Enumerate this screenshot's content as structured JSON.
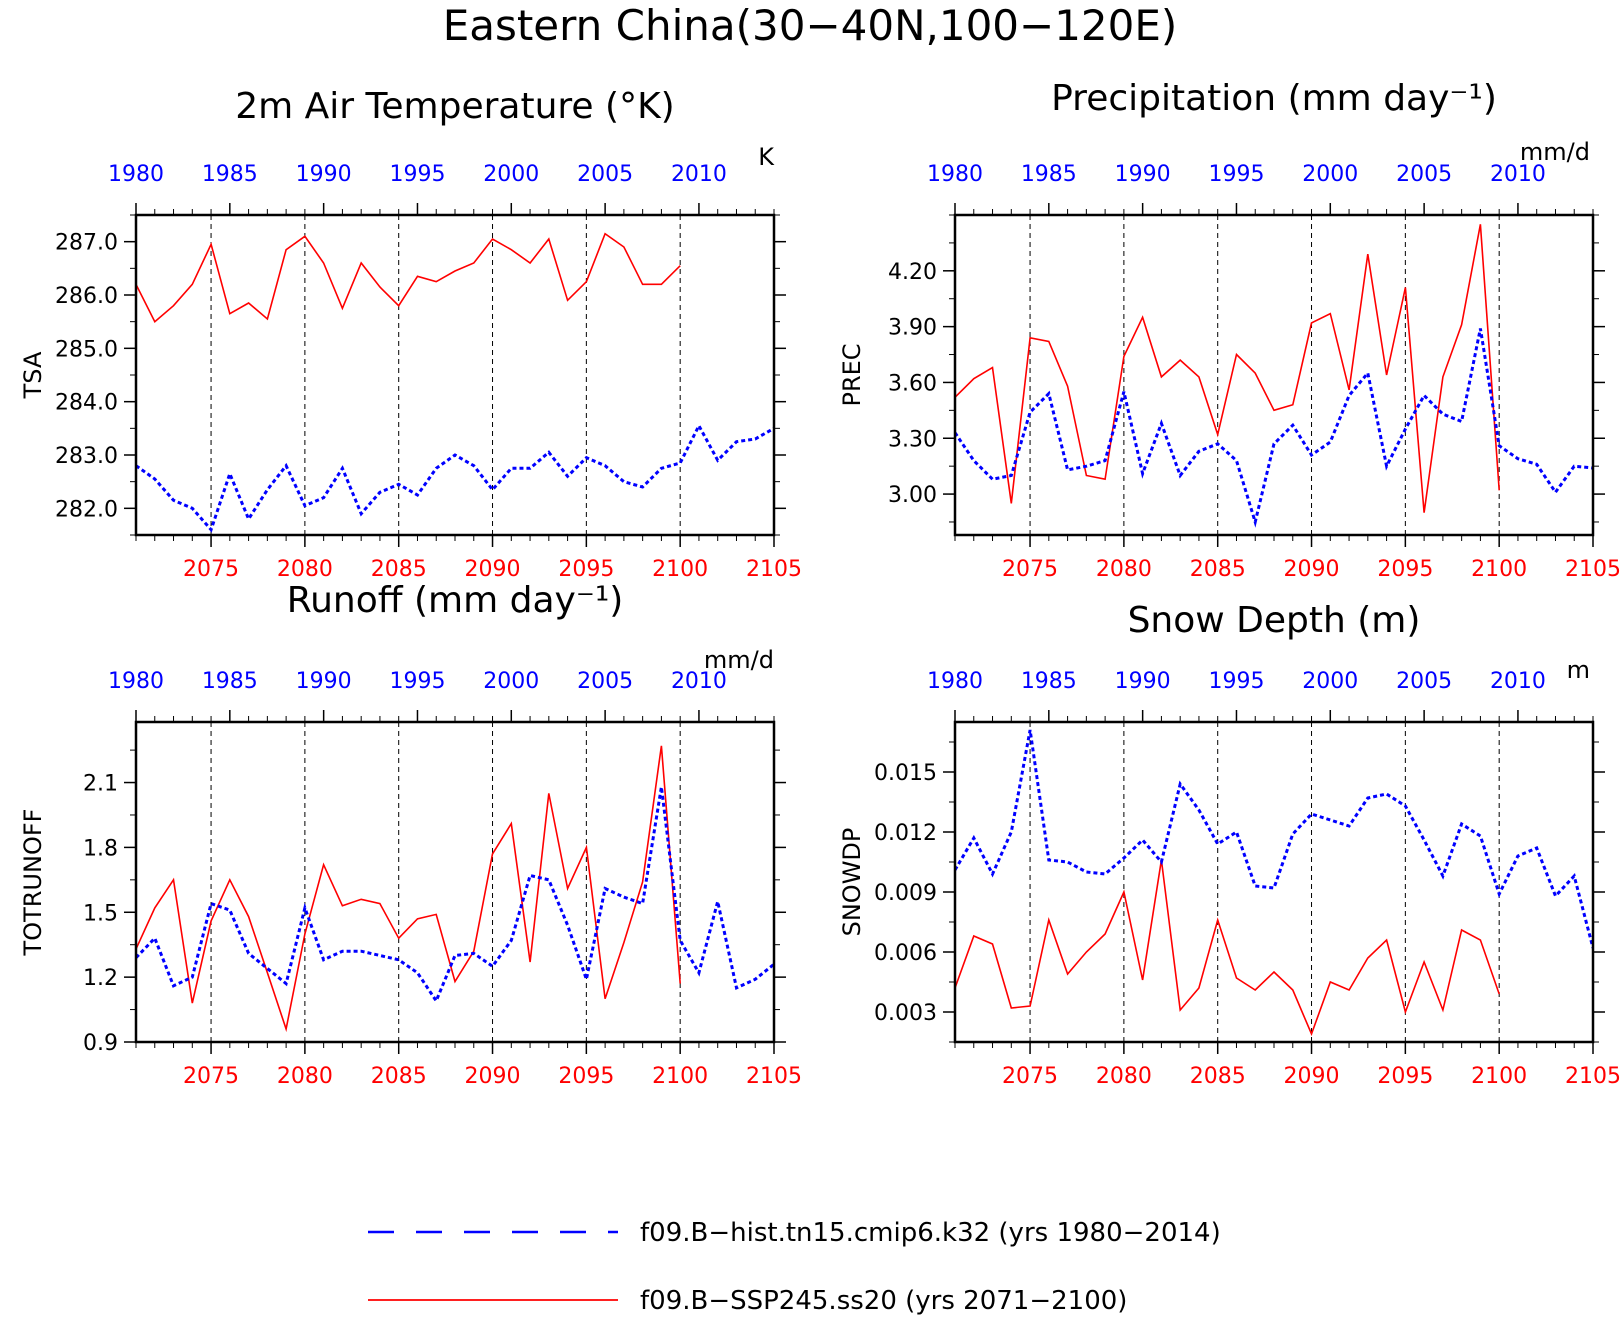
{
  "figure_title": "Eastern China(30−40N,100−120E)",
  "colors": {
    "hist": "#0000ff",
    "ssp": "#ff0000",
    "axis": "#000000"
  },
  "legend": {
    "placement": "bottom-center",
    "entries": [
      {
        "label": "f09.B−hist.tn15.cmip6.k32 (yrs 1980−2014)",
        "color": "#0000ff",
        "style": "dashed"
      },
      {
        "label": "f09.B−SSP245.ss20 (yrs 2071−2100)",
        "color": "#ff0000",
        "style": "solid"
      }
    ]
  },
  "chart_data": [
    {
      "type": "line",
      "title": "2m Air Temperature (°K)",
      "ylabel": "TSA",
      "unit": "K",
      "ylim": [
        281.5,
        287.5
      ],
      "yticks": [
        282,
        283,
        284,
        285,
        286,
        287
      ],
      "ytick_labels": [
        "282.0",
        "283.0",
        "284.0",
        "285.0",
        "286.0",
        "287.0"
      ],
      "bottom_axis": {
        "label_color": "#ff0000",
        "range": [
          2071,
          2105
        ],
        "ticks": [
          2075,
          2080,
          2085,
          2090,
          2095,
          2100,
          2105
        ]
      },
      "top_axis": {
        "label_color": "#0000ff",
        "range": [
          1980,
          2014
        ],
        "ticks": [
          1980,
          1985,
          1990,
          1995,
          2000,
          2005,
          2010
        ]
      },
      "grid": "vertical dashed at bottom-axis major ticks",
      "series": [
        {
          "name": "f09.B−SSP245.ss20",
          "axis": "bottom",
          "x_start": 2071,
          "style": "solid",
          "values": [
            286.2,
            285.5,
            285.8,
            286.2,
            286.95,
            285.65,
            285.85,
            285.55,
            286.85,
            287.1,
            286.6,
            285.75,
            286.6,
            286.15,
            285.8,
            286.35,
            286.25,
            286.45,
            286.6,
            287.05,
            286.85,
            286.6,
            287.05,
            285.9,
            286.25,
            287.15,
            286.9,
            286.2,
            286.2,
            286.55
          ]
        },
        {
          "name": "f09.B−hist.tn15.cmip6.k32",
          "axis": "top",
          "x_start": 1980,
          "style": "dashed",
          "values": [
            282.8,
            282.55,
            282.15,
            282.0,
            281.6,
            282.65,
            281.8,
            282.35,
            282.8,
            282.05,
            282.2,
            282.75,
            281.9,
            282.3,
            282.45,
            282.25,
            282.75,
            283.0,
            282.8,
            282.35,
            282.75,
            282.75,
            283.05,
            282.6,
            282.95,
            282.8,
            282.5,
            282.4,
            282.75,
            282.85,
            283.55,
            282.9,
            283.25,
            283.3,
            283.5
          ]
        }
      ]
    },
    {
      "type": "line",
      "title": "Precipitation (mm day⁻¹)",
      "ylabel": "PREC",
      "unit": "mm/d",
      "ylim": [
        2.78,
        4.5
      ],
      "yticks": [
        3.0,
        3.3,
        3.6,
        3.9,
        4.2
      ],
      "ytick_labels": [
        "3.00",
        "3.30",
        "3.60",
        "3.90",
        "4.20"
      ],
      "bottom_axis": {
        "label_color": "#ff0000",
        "range": [
          2071,
          2105
        ],
        "ticks": [
          2075,
          2080,
          2085,
          2090,
          2095,
          2100,
          2105
        ]
      },
      "top_axis": {
        "label_color": "#0000ff",
        "range": [
          1980,
          2014
        ],
        "ticks": [
          1980,
          1985,
          1990,
          1995,
          2000,
          2005,
          2010
        ]
      },
      "grid": "vertical dashed at bottom-axis major ticks",
      "series": [
        {
          "name": "f09.B−SSP245.ss20",
          "axis": "bottom",
          "x_start": 2071,
          "style": "solid",
          "values": [
            3.52,
            3.62,
            3.68,
            2.95,
            3.84,
            3.82,
            3.58,
            3.1,
            3.08,
            3.74,
            3.95,
            3.63,
            3.72,
            3.63,
            3.32,
            3.75,
            3.65,
            3.45,
            3.48,
            3.92,
            3.97,
            3.56,
            4.29,
            3.64,
            4.11,
            2.9,
            3.63,
            3.91,
            4.45,
            3.02
          ]
        },
        {
          "name": "f09.B−hist.tn15.cmip6.k32",
          "axis": "top",
          "x_start": 1980,
          "style": "dashed",
          "values": [
            3.33,
            3.18,
            3.08,
            3.1,
            3.44,
            3.54,
            3.13,
            3.15,
            3.18,
            3.55,
            3.11,
            3.38,
            3.1,
            3.23,
            3.27,
            3.18,
            2.85,
            3.27,
            3.37,
            3.21,
            3.28,
            3.53,
            3.65,
            3.15,
            3.35,
            3.53,
            3.43,
            3.39,
            3.89,
            3.26,
            3.19,
            3.16,
            3.01,
            3.15,
            3.14
          ]
        }
      ]
    },
    {
      "type": "line",
      "title": "Runoff (mm day⁻¹)",
      "ylabel": "TOTRUNOFF",
      "unit": "mm/d",
      "ylim": [
        0.9,
        2.38
      ],
      "yticks": [
        0.9,
        1.2,
        1.5,
        1.8,
        2.1
      ],
      "ytick_labels": [
        "0.9",
        "1.2",
        "1.5",
        "1.8",
        "2.1"
      ],
      "bottom_axis": {
        "label_color": "#ff0000",
        "range": [
          2071,
          2105
        ],
        "ticks": [
          2075,
          2080,
          2085,
          2090,
          2095,
          2100,
          2105
        ]
      },
      "top_axis": {
        "label_color": "#0000ff",
        "range": [
          1980,
          2014
        ],
        "ticks": [
          1980,
          1985,
          1990,
          1995,
          2000,
          2005,
          2010
        ]
      },
      "grid": "vertical dashed at bottom-axis major ticks",
      "series": [
        {
          "name": "f09.B−SSP245.ss20",
          "axis": "bottom",
          "x_start": 2071,
          "style": "solid",
          "values": [
            1.33,
            1.52,
            1.65,
            1.08,
            1.46,
            1.65,
            1.48,
            1.22,
            0.96,
            1.4,
            1.72,
            1.53,
            1.56,
            1.54,
            1.38,
            1.47,
            1.49,
            1.18,
            1.32,
            1.77,
            1.91,
            1.27,
            2.05,
            1.61,
            1.8,
            1.1,
            1.36,
            1.64,
            2.27,
            1.17
          ]
        },
        {
          "name": "f09.B−hist.tn15.cmip6.k32",
          "axis": "top",
          "x_start": 1980,
          "style": "dashed",
          "values": [
            1.29,
            1.38,
            1.16,
            1.2,
            1.54,
            1.51,
            1.31,
            1.24,
            1.17,
            1.52,
            1.28,
            1.32,
            1.32,
            1.3,
            1.28,
            1.22,
            1.09,
            1.3,
            1.31,
            1.25,
            1.37,
            1.67,
            1.65,
            1.44,
            1.19,
            1.61,
            1.57,
            1.54,
            2.08,
            1.37,
            1.22,
            1.55,
            1.15,
            1.19,
            1.26
          ]
        }
      ]
    },
    {
      "type": "line",
      "title": "Snow Depth (m)",
      "ylabel": "SNOWDP",
      "unit": "m",
      "ylim": [
        0.0015,
        0.0175
      ],
      "yticks": [
        0.003,
        0.006,
        0.009,
        0.012,
        0.015
      ],
      "ytick_labels": [
        "0.003",
        "0.006",
        "0.009",
        "0.012",
        "0.015"
      ],
      "bottom_axis": {
        "label_color": "#ff0000",
        "range": [
          2071,
          2105
        ],
        "ticks": [
          2075,
          2080,
          2085,
          2090,
          2095,
          2100,
          2105
        ]
      },
      "top_axis": {
        "label_color": "#0000ff",
        "range": [
          1980,
          2014
        ],
        "ticks": [
          1980,
          1985,
          1990,
          1995,
          2000,
          2005,
          2010
        ]
      },
      "grid": "vertical dashed at bottom-axis major ticks",
      "series": [
        {
          "name": "f09.B−SSP245.ss20",
          "axis": "bottom",
          "x_start": 2071,
          "style": "solid",
          "values": [
            0.0042,
            0.0068,
            0.0064,
            0.0032,
            0.0033,
            0.0076,
            0.0049,
            0.006,
            0.0069,
            0.009,
            0.0046,
            0.0106,
            0.0031,
            0.0042,
            0.0076,
            0.0047,
            0.0041,
            0.005,
            0.0041,
            0.0019,
            0.0045,
            0.0041,
            0.0057,
            0.0066,
            0.003,
            0.0055,
            0.0031,
            0.0071,
            0.0066,
            0.0039
          ]
        },
        {
          "name": "f09.B−hist.tn15.cmip6.k32",
          "axis": "top",
          "x_start": 1980,
          "style": "dashed",
          "values": [
            0.0101,
            0.0117,
            0.0099,
            0.012,
            0.0171,
            0.0106,
            0.0105,
            0.01,
            0.0099,
            0.0107,
            0.0116,
            0.0105,
            0.0144,
            0.0131,
            0.0114,
            0.012,
            0.0093,
            0.0092,
            0.0119,
            0.0129,
            0.0126,
            0.0123,
            0.0137,
            0.0139,
            0.0133,
            0.0116,
            0.0098,
            0.0124,
            0.0118,
            0.0089,
            0.0108,
            0.0112,
            0.0088,
            0.0098,
            0.0062
          ]
        }
      ]
    }
  ]
}
